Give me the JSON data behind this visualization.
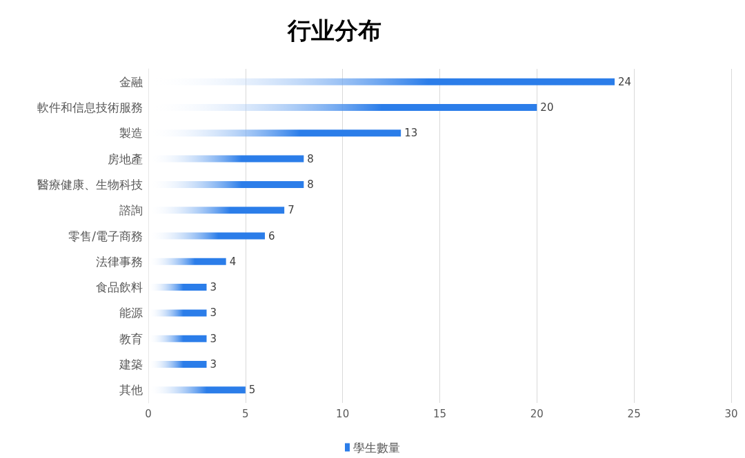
{
  "chart_data": {
    "type": "bar",
    "orientation": "horizontal",
    "title": "行业分布",
    "categories": [
      "金融",
      "軟件和信息技術服務",
      "製造",
      "房地產",
      "醫療健康、生物科技",
      "諮詢",
      "零售/電子商務",
      "法律事務",
      "食品飲料",
      "能源",
      "教育",
      "建築",
      "其他"
    ],
    "series": [
      {
        "name": "學生數量",
        "color": "#2b7de9",
        "values": [
          24,
          20,
          13,
          8,
          8,
          7,
          6,
          4,
          3,
          3,
          3,
          3,
          5
        ]
      }
    ],
    "xlim": [
      0,
      30
    ],
    "xticks": [
      0,
      5,
      10,
      15,
      20,
      25,
      30
    ],
    "grid": "x",
    "legend": "bottom",
    "data_labels": true
  }
}
